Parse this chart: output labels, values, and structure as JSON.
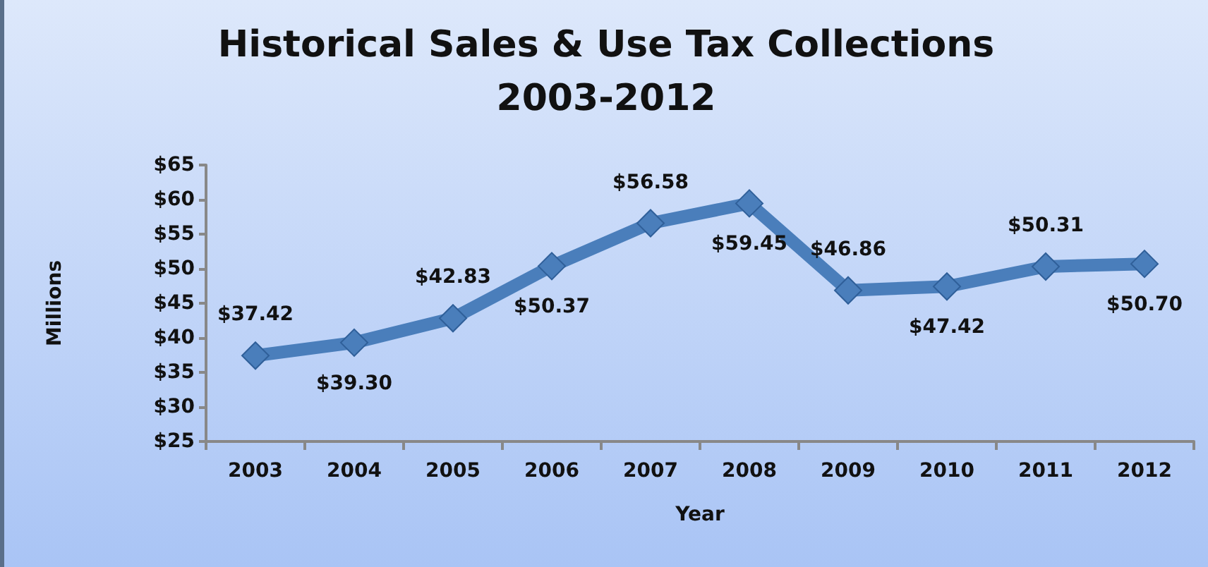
{
  "chart_data": {
    "type": "line",
    "title": "Historical Sales & Use Tax Collections",
    "subtitle": "2003-2012",
    "xlabel": "Year",
    "ylabel": "Millions",
    "categories": [
      "2003",
      "2004",
      "2005",
      "2006",
      "2007",
      "2008",
      "2009",
      "2010",
      "2011",
      "2012"
    ],
    "series": [
      {
        "color": "#4a7ebb",
        "values": [
          37.42,
          39.3,
          42.83,
          50.37,
          56.58,
          59.45,
          46.86,
          47.42,
          50.31,
          50.7
        ],
        "value_labels": [
          "$37.42",
          "$39.30",
          "$42.83",
          "$50.37",
          "$56.58",
          "$59.45",
          "$46.86",
          "$47.42",
          "$50.31",
          "$50.70"
        ]
      }
    ],
    "ylim": [
      25,
      65
    ],
    "yticks": [
      {
        "value": 25,
        "label": "$25"
      },
      {
        "value": 30,
        "label": "$30"
      },
      {
        "value": 35,
        "label": "$35"
      },
      {
        "value": 40,
        "label": "$40"
      },
      {
        "value": 45,
        "label": "$45"
      },
      {
        "value": 50,
        "label": "$50"
      },
      {
        "value": 55,
        "label": "$55"
      },
      {
        "value": 60,
        "label": "$60"
      },
      {
        "value": 65,
        "label": "$65"
      }
    ],
    "grid": false,
    "marker": "diamond",
    "line_style": "solid"
  }
}
